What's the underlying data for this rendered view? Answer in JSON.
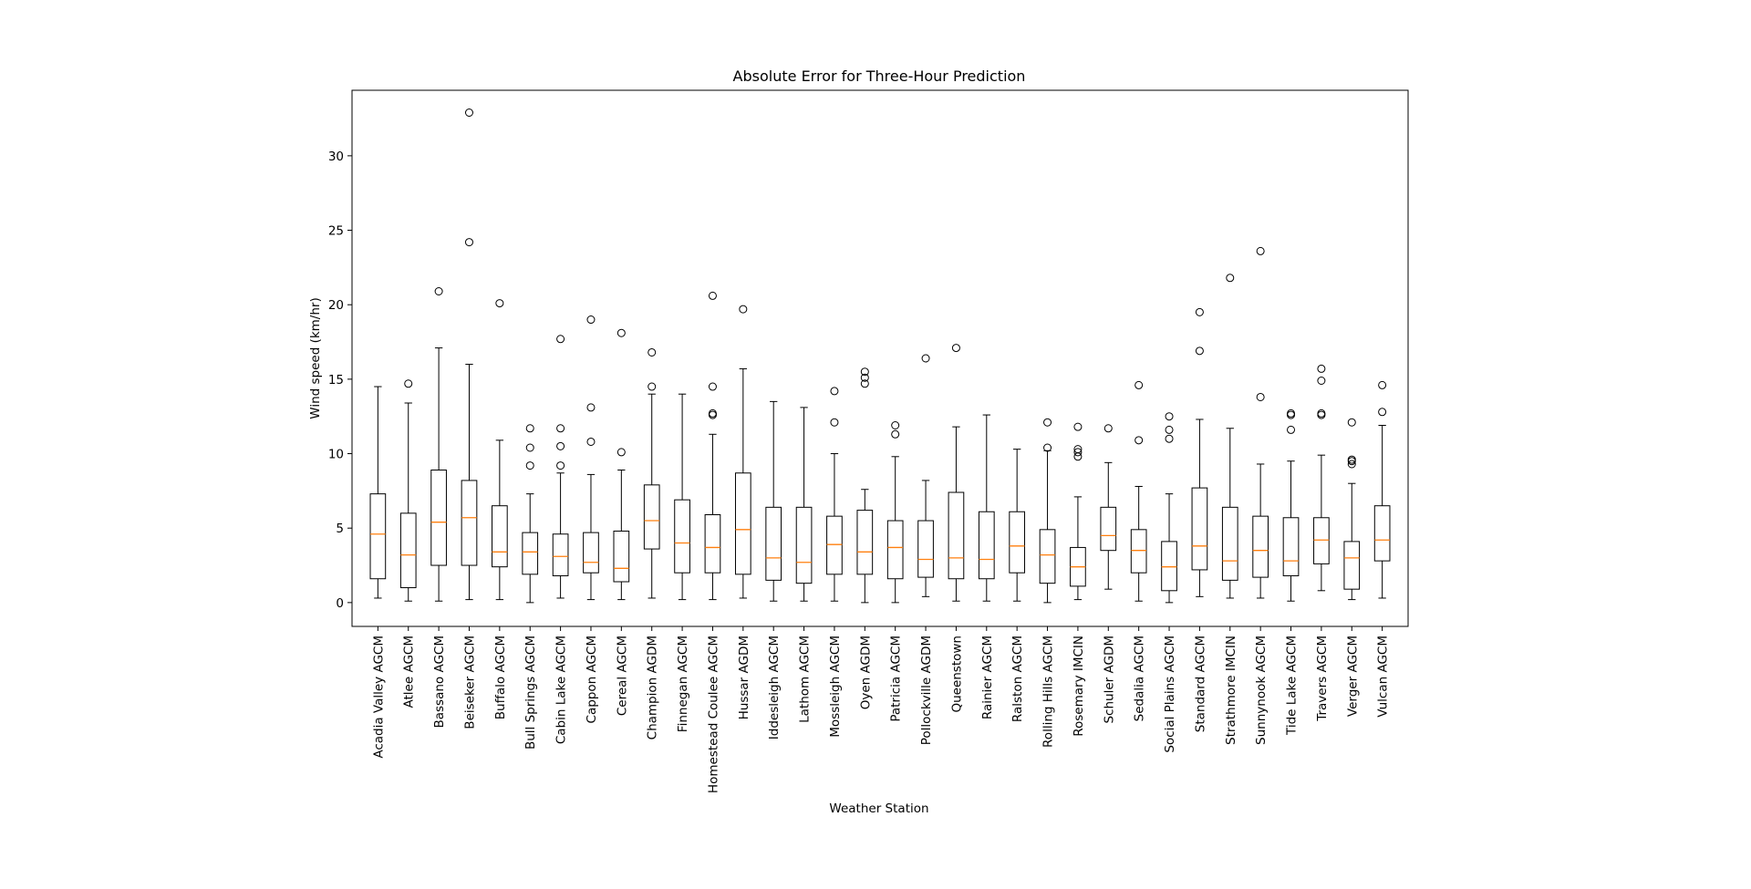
{
  "chart_data": {
    "type": "box",
    "title": "Absolute Error for Three-Hour Prediction",
    "xlabel": "Weather Station",
    "ylabel": "Wind speed (km/hr)",
    "ylim": [
      -1.6,
      34.4
    ],
    "yticks": [
      0,
      5,
      10,
      15,
      20,
      25,
      30
    ],
    "grid": false,
    "colors": {
      "box": "#000000",
      "median": "#ff7f0e",
      "outlier": "#000000"
    },
    "series": [
      {
        "label": "Acadia Valley AGCM",
        "whisker_low": 0.3,
        "q1": 1.6,
        "median": 4.6,
        "q3": 7.3,
        "whisker_high": 14.5,
        "outliers": []
      },
      {
        "label": "Atlee AGCM",
        "whisker_low": 0.1,
        "q1": 1.0,
        "median": 3.2,
        "q3": 6.0,
        "whisker_high": 13.4,
        "outliers": [
          14.7
        ]
      },
      {
        "label": "Bassano AGCM",
        "whisker_low": 0.1,
        "q1": 2.5,
        "median": 5.4,
        "q3": 8.9,
        "whisker_high": 17.1,
        "outliers": [
          20.9
        ]
      },
      {
        "label": "Beiseker AGCM",
        "whisker_low": 0.2,
        "q1": 2.5,
        "median": 5.7,
        "q3": 8.2,
        "whisker_high": 16.0,
        "outliers": [
          24.2,
          32.9
        ]
      },
      {
        "label": "Buffalo AGCM",
        "whisker_low": 0.2,
        "q1": 2.4,
        "median": 3.4,
        "q3": 6.5,
        "whisker_high": 10.9,
        "outliers": [
          20.1
        ]
      },
      {
        "label": "Bull Springs AGCM",
        "whisker_low": 0.0,
        "q1": 1.9,
        "median": 3.4,
        "q3": 4.7,
        "whisker_high": 7.3,
        "outliers": [
          9.2,
          10.4,
          11.7
        ]
      },
      {
        "label": "Cabin Lake AGCM",
        "whisker_low": 0.3,
        "q1": 1.8,
        "median": 3.1,
        "q3": 4.6,
        "whisker_high": 8.7,
        "outliers": [
          9.2,
          10.5,
          11.7,
          17.7
        ]
      },
      {
        "label": "Cappon AGCM",
        "whisker_low": 0.2,
        "q1": 2.0,
        "median": 2.7,
        "q3": 4.7,
        "whisker_high": 8.6,
        "outliers": [
          10.8,
          13.1,
          19.0
        ]
      },
      {
        "label": "Cereal AGCM",
        "whisker_low": 0.2,
        "q1": 1.4,
        "median": 2.3,
        "q3": 4.8,
        "whisker_high": 8.9,
        "outliers": [
          10.1,
          18.1
        ]
      },
      {
        "label": "Champion AGDM",
        "whisker_low": 0.3,
        "q1": 3.6,
        "median": 5.5,
        "q3": 7.9,
        "whisker_high": 14.0,
        "outliers": [
          14.5,
          16.8
        ]
      },
      {
        "label": "Finnegan AGCM",
        "whisker_low": 0.2,
        "q1": 2.0,
        "median": 4.0,
        "q3": 6.9,
        "whisker_high": 14.0,
        "outliers": []
      },
      {
        "label": "Homestead Coulee AGCM",
        "whisker_low": 0.2,
        "q1": 2.0,
        "median": 3.7,
        "q3": 5.9,
        "whisker_high": 11.3,
        "outliers": [
          12.6,
          12.7,
          14.5,
          20.6
        ]
      },
      {
        "label": "Hussar AGDM",
        "whisker_low": 0.3,
        "q1": 1.9,
        "median": 4.9,
        "q3": 8.7,
        "whisker_high": 15.7,
        "outliers": [
          19.7
        ]
      },
      {
        "label": "Iddesleigh AGCM",
        "whisker_low": 0.1,
        "q1": 1.5,
        "median": 3.0,
        "q3": 6.4,
        "whisker_high": 13.5,
        "outliers": []
      },
      {
        "label": "Lathom AGCM",
        "whisker_low": 0.1,
        "q1": 1.3,
        "median": 2.7,
        "q3": 6.4,
        "whisker_high": 13.1,
        "outliers": []
      },
      {
        "label": "Mossleigh AGCM",
        "whisker_low": 0.1,
        "q1": 1.9,
        "median": 3.9,
        "q3": 5.8,
        "whisker_high": 10.0,
        "outliers": [
          12.1,
          14.2
        ]
      },
      {
        "label": "Oyen AGDM",
        "whisker_low": 0.0,
        "q1": 1.9,
        "median": 3.4,
        "q3": 6.2,
        "whisker_high": 7.6,
        "outliers": [
          14.7,
          15.1,
          15.5
        ]
      },
      {
        "label": "Patricia AGCM",
        "whisker_low": 0.0,
        "q1": 1.6,
        "median": 3.7,
        "q3": 5.5,
        "whisker_high": 9.8,
        "outliers": [
          11.3,
          11.9
        ]
      },
      {
        "label": "Pollockville AGDM",
        "whisker_low": 0.4,
        "q1": 1.7,
        "median": 2.9,
        "q3": 5.5,
        "whisker_high": 8.2,
        "outliers": [
          16.4
        ]
      },
      {
        "label": "Queenstown",
        "whisker_low": 0.1,
        "q1": 1.6,
        "median": 3.0,
        "q3": 7.4,
        "whisker_high": 11.8,
        "outliers": [
          17.1
        ]
      },
      {
        "label": "Rainier AGCM",
        "whisker_low": 0.1,
        "q1": 1.6,
        "median": 2.9,
        "q3": 6.1,
        "whisker_high": 12.6,
        "outliers": []
      },
      {
        "label": "Ralston AGCM",
        "whisker_low": 0.1,
        "q1": 2.0,
        "median": 3.8,
        "q3": 6.1,
        "whisker_high": 10.3,
        "outliers": []
      },
      {
        "label": "Rolling Hills AGCM",
        "whisker_low": 0.0,
        "q1": 1.3,
        "median": 3.2,
        "q3": 4.9,
        "whisker_high": 10.2,
        "outliers": [
          10.4,
          12.1
        ]
      },
      {
        "label": "Rosemary IMCIN",
        "whisker_low": 0.2,
        "q1": 1.1,
        "median": 2.4,
        "q3": 3.7,
        "whisker_high": 7.1,
        "outliers": [
          9.8,
          10.1,
          10.3,
          11.8
        ]
      },
      {
        "label": "Schuler AGDM",
        "whisker_low": 0.9,
        "q1": 3.5,
        "median": 4.5,
        "q3": 6.4,
        "whisker_high": 9.4,
        "outliers": [
          11.7
        ]
      },
      {
        "label": "Sedalia AGCM",
        "whisker_low": 0.1,
        "q1": 2.0,
        "median": 3.5,
        "q3": 4.9,
        "whisker_high": 7.8,
        "outliers": [
          10.9,
          14.6
        ]
      },
      {
        "label": "Social Plains AGCM",
        "whisker_low": 0.0,
        "q1": 0.8,
        "median": 2.4,
        "q3": 4.1,
        "whisker_high": 7.3,
        "outliers": [
          11.0,
          11.6,
          12.5
        ]
      },
      {
        "label": "Standard AGCM",
        "whisker_low": 0.4,
        "q1": 2.2,
        "median": 3.8,
        "q3": 7.7,
        "whisker_high": 12.3,
        "outliers": [
          16.9,
          19.5
        ]
      },
      {
        "label": "Strathmore IMCIN",
        "whisker_low": 0.3,
        "q1": 1.5,
        "median": 2.8,
        "q3": 6.4,
        "whisker_high": 11.7,
        "outliers": [
          21.8
        ]
      },
      {
        "label": "Sunnynook AGCM",
        "whisker_low": 0.3,
        "q1": 1.7,
        "median": 3.5,
        "q3": 5.8,
        "whisker_high": 9.3,
        "outliers": [
          13.8,
          23.6
        ]
      },
      {
        "label": "Tide Lake AGCM",
        "whisker_low": 0.1,
        "q1": 1.8,
        "median": 2.8,
        "q3": 5.7,
        "whisker_high": 9.5,
        "outliers": [
          11.6,
          12.6,
          12.7
        ]
      },
      {
        "label": "Travers AGCM",
        "whisker_low": 0.8,
        "q1": 2.6,
        "median": 4.2,
        "q3": 5.7,
        "whisker_high": 9.9,
        "outliers": [
          12.6,
          12.7,
          14.9,
          15.7
        ]
      },
      {
        "label": "Verger AGCM",
        "whisker_low": 0.2,
        "q1": 0.9,
        "median": 3.0,
        "q3": 4.1,
        "whisker_high": 8.0,
        "outliers": [
          9.3,
          9.5,
          9.6,
          12.1
        ]
      },
      {
        "label": "Vulcan AGCM",
        "whisker_low": 0.3,
        "q1": 2.8,
        "median": 4.2,
        "q3": 6.5,
        "whisker_high": 11.9,
        "outliers": [
          12.8,
          14.6
        ]
      }
    ]
  }
}
